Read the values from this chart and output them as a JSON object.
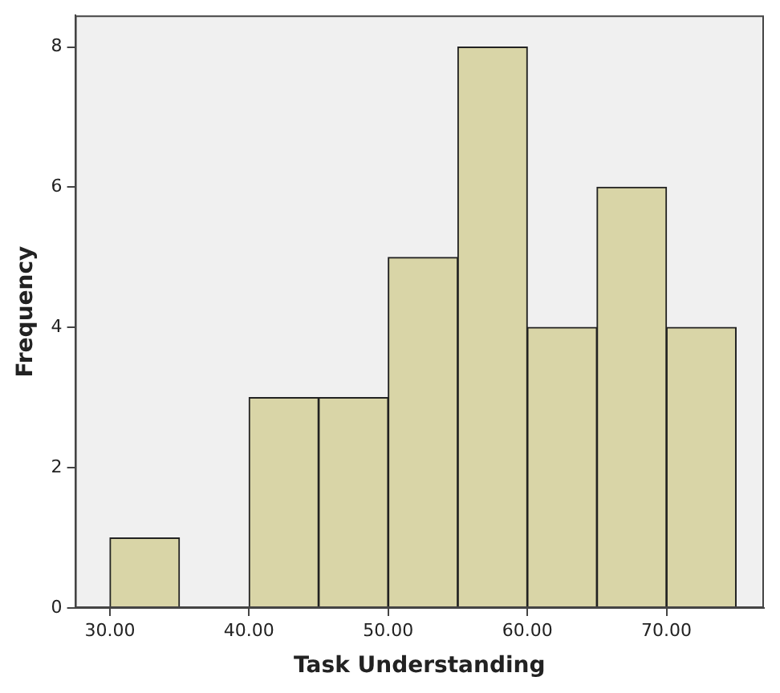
{
  "chart_data": {
    "type": "histogram",
    "xlabel": "Task Understanding",
    "ylabel": "Frequency",
    "bins": [
      30,
      35,
      40,
      45,
      50,
      55,
      60,
      65,
      70,
      75
    ],
    "values": [
      1,
      0,
      3,
      3,
      5,
      8,
      4,
      6,
      4
    ],
    "color": "#d9d5a7",
    "xlim": [
      27.5,
      77
    ],
    "xticks": [
      {
        "value": 30,
        "label": "30.00"
      },
      {
        "value": 40,
        "label": "40.00"
      },
      {
        "value": 50,
        "label": "50.00"
      },
      {
        "value": 60,
        "label": "60.00"
      },
      {
        "value": 70,
        "label": "70.00"
      }
    ],
    "ylim": [
      0,
      8.45
    ],
    "yticks": [
      0,
      2,
      4,
      6,
      8
    ],
    "grid": false,
    "legend": false
  }
}
